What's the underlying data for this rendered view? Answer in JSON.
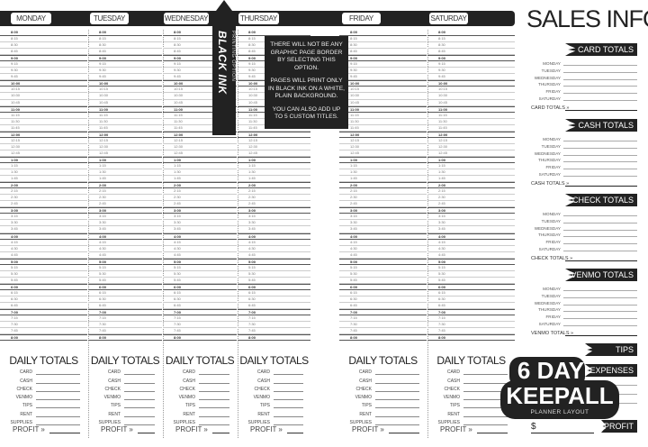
{
  "days": [
    "MONDAY",
    "TUESDAY",
    "WEDNESDAY",
    "THURSDAY",
    "FRIDAY",
    "SATURDAY"
  ],
  "time_slots": [
    "8:00",
    "8:15",
    "8:30",
    "8:45",
    "9:00",
    "9:15",
    "9:30",
    "9:45",
    "10:00",
    "10:15",
    "10:30",
    "10:45",
    "11:00",
    "11:15",
    "11:30",
    "11:45",
    "12:00",
    "12:15",
    "12:30",
    "12:45",
    "1:00",
    "1:15",
    "1:30",
    "1:45",
    "2:00",
    "2:15",
    "2:30",
    "2:45",
    "3:00",
    "3:15",
    "3:30",
    "3:45",
    "4:00",
    "4:15",
    "4:30",
    "4:45",
    "5:00",
    "5:15",
    "5:30",
    "5:45",
    "6:00",
    "6:15",
    "6:30",
    "6:45",
    "7:00",
    "7:15",
    "7:30",
    "7:45",
    "8:00"
  ],
  "daily_totals": {
    "title": "DAILY TOTALS",
    "rows": [
      "CARD",
      "CASH",
      "CHECK",
      "VENMO",
      "TIPS",
      "RENT",
      "SUPPLIES"
    ],
    "profit": "PROFIT »"
  },
  "sidebar": {
    "title": "SALES INFO",
    "weekdays": [
      "MONDAY",
      "TUESDAY",
      "WEDNESDAY",
      "THURSDAY",
      "FRIDAY",
      "SATURDAY"
    ],
    "sections": [
      {
        "banner": "CARD TOTALS",
        "total": "CARD TOTALS »"
      },
      {
        "banner": "CASH TOTALS",
        "total": "CASH TOTALS »"
      },
      {
        "banner": "CHECK TOTALS",
        "total": "CHECK TOTALS »"
      },
      {
        "banner": "VENMO TOTALS",
        "total": "VENMO TOTALS »"
      }
    ],
    "tips_banner": "TIPS",
    "expenses_banner": "EXPENSES",
    "profit_banner": "PROFIT",
    "currency": "$"
  },
  "overlay": {
    "arrow_title": "BLACK INK",
    "arrow_subtitle": "PRINTING OPTION",
    "lines": [
      "THERE WILL NOT BE ANY GRAPHIC PAGE BORDER BY SELECTING THIS OPTION.",
      "PAGES WILL PRINT ONLY IN BLACK INK ON A WHITE, PLAIN BACKGROUND.",
      "YOU CAN ALSO ADD UP TO 5 CUSTOM TITLES."
    ]
  },
  "badge": {
    "line1": "6 DAY",
    "line2": "KEEPALL",
    "line3": "PLANNER LAYOUT"
  },
  "colors": {
    "ink": "#222222",
    "paper": "#ffffff"
  }
}
